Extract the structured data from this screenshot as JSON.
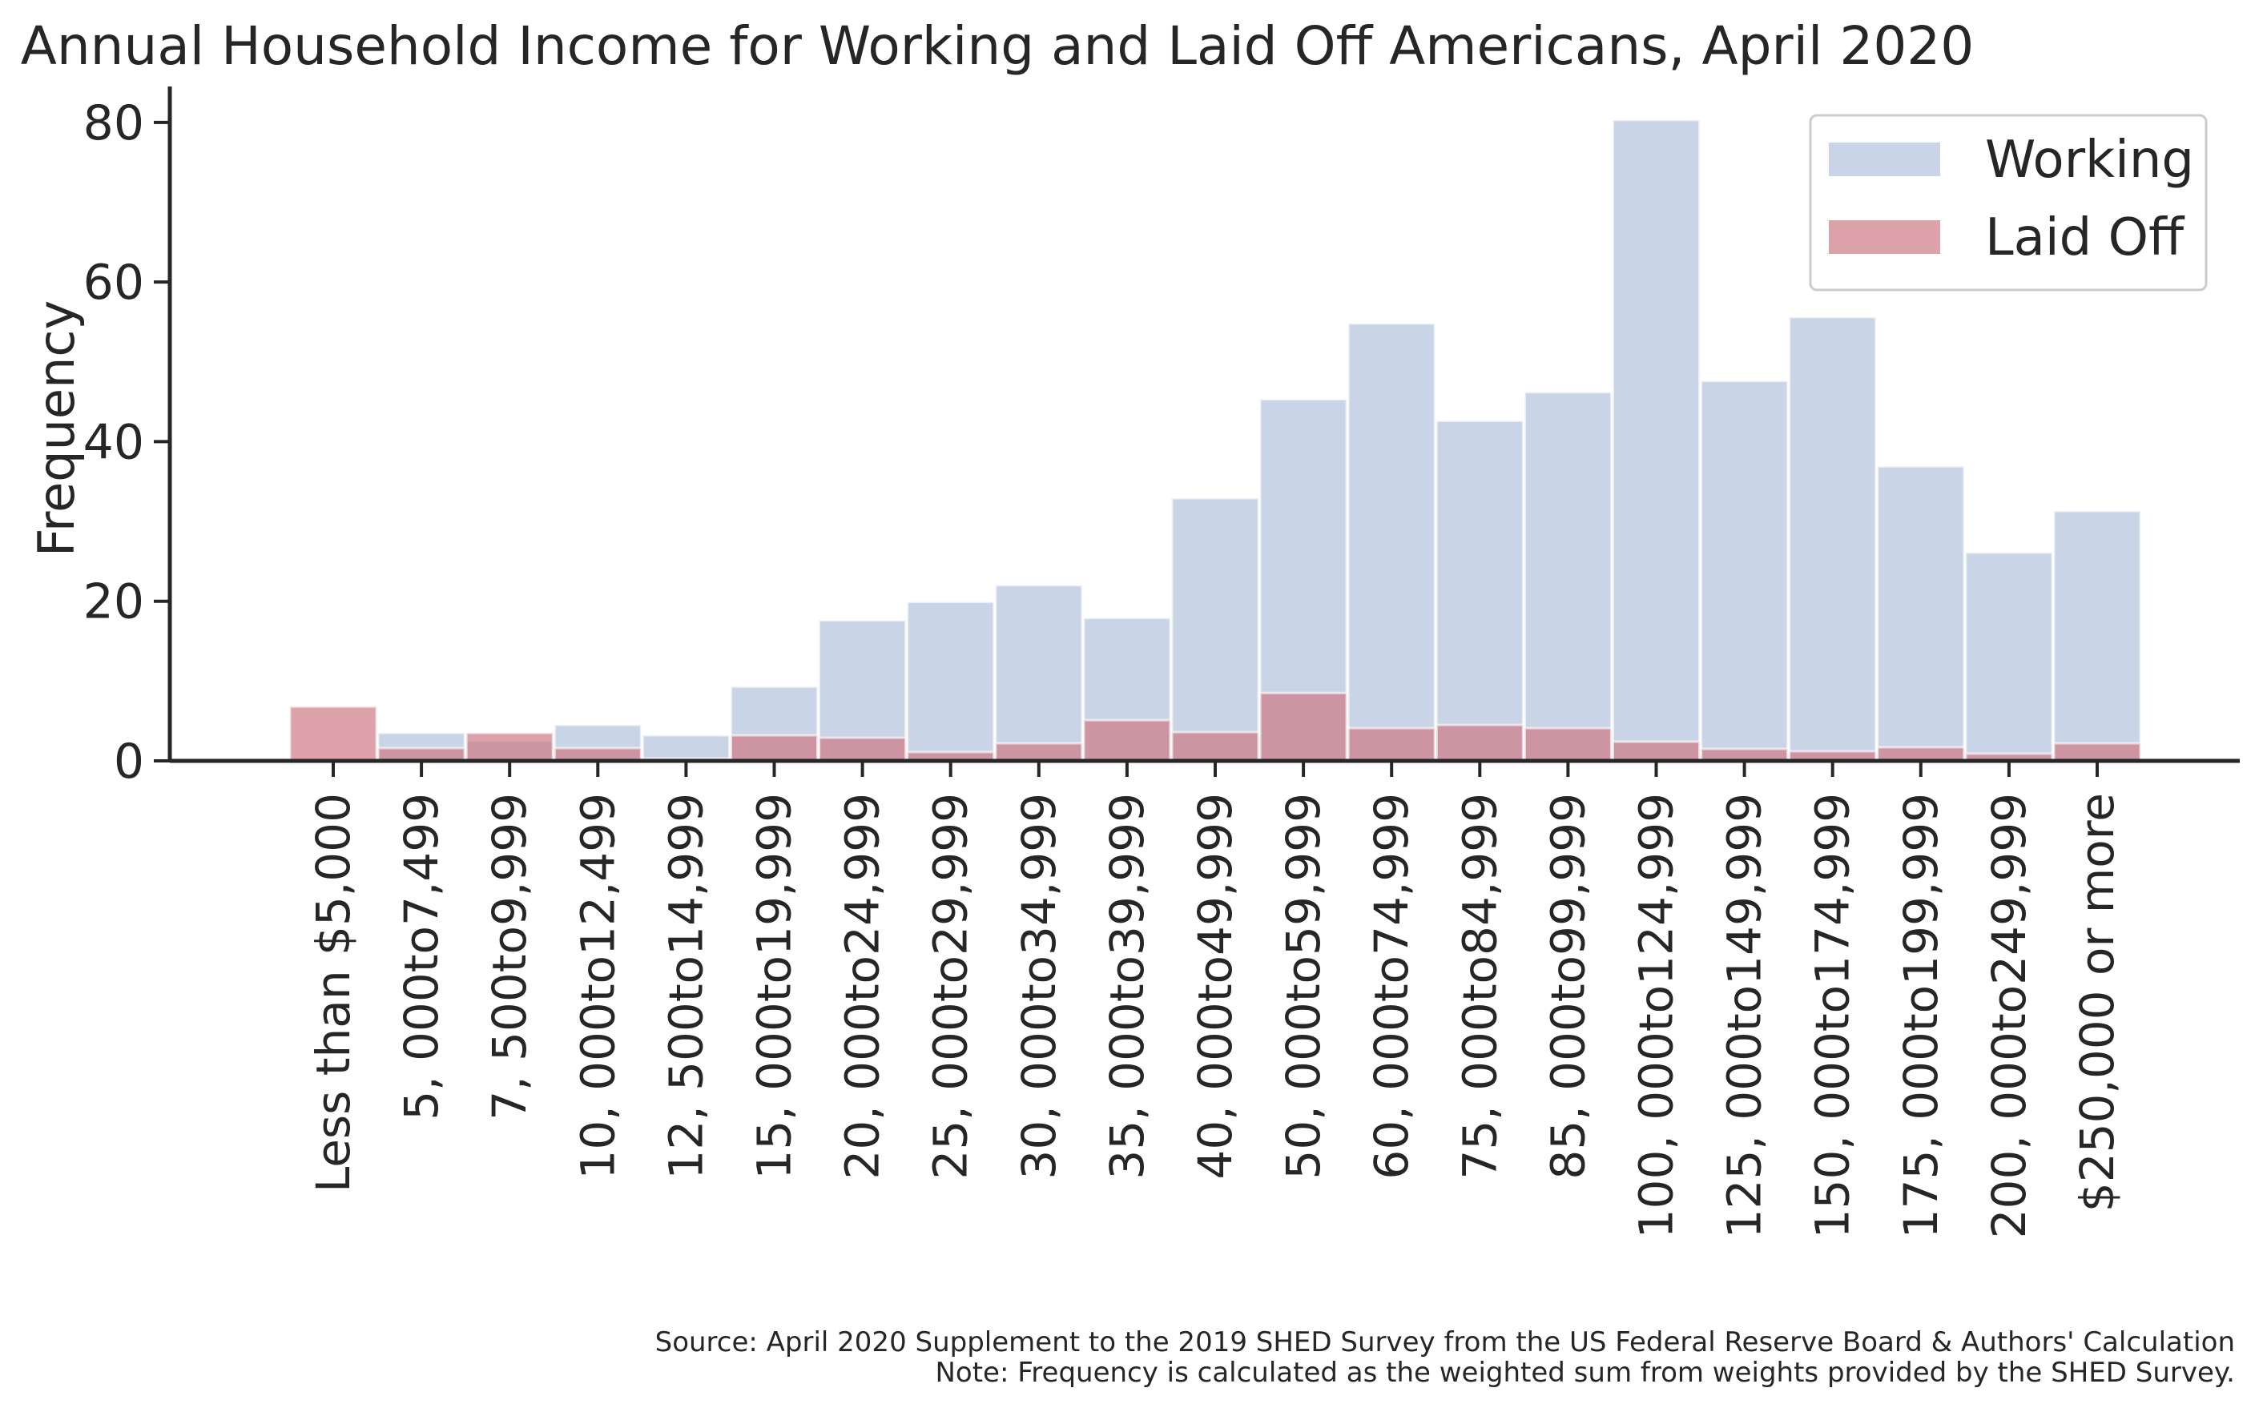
{
  "chart_data": {
    "type": "bar",
    "title": "Annual Household Income for Working and Laid Off Americans, April 2020",
    "ylabel": "Frequency",
    "xlabel": "",
    "ylim": [
      0,
      84.5
    ],
    "yticks": [
      0,
      20,
      40,
      60,
      80
    ],
    "categories": [
      "Less than $5,000",
      "5, 000to7,499",
      "7, 500to9,999",
      "10, 000to12,499",
      "12, 500to14,999",
      "15, 000to19,999",
      "20, 000to24,999",
      "25, 000to29,999",
      "30, 000to34,999",
      "35, 000to39,999",
      "40, 000to49,999",
      "50, 000to59,999",
      "60, 000to74,999",
      "75, 000to84,999",
      "85, 000to99,999",
      "100, 000to124,999",
      "125, 000to149,999",
      "150, 000to174,999",
      "175, 000to199,999",
      "200, 000to249,999",
      "$250,000 or more"
    ],
    "series": [
      {
        "name": "Working",
        "color": "#b7c5de",
        "values": [
          0,
          3.5,
          2.5,
          4.5,
          3.2,
          9.3,
          17.6,
          19.9,
          22.0,
          17.9,
          32.9,
          45.3,
          54.8,
          42.6,
          46.2,
          80.3,
          47.6,
          55.6,
          36.9,
          26.1,
          31.3
        ]
      },
      {
        "name": "Laid Off",
        "color": "#cf7b85",
        "values": [
          6.8,
          1.6,
          3.5,
          1.6,
          0.3,
          3.2,
          2.9,
          1.1,
          2.2,
          5.1,
          3.6,
          8.5,
          4.1,
          4.5,
          4.1,
          2.4,
          1.5,
          1.2,
          1.7,
          0.9,
          2.2
        ]
      }
    ],
    "legend_position": "top-right",
    "grid": false
  },
  "footnote": {
    "source": "Source: April 2020 Supplement to the 2019 SHED Survey from the US Federal Reserve Board & Authors' Calculation",
    "note": "Note: Frequency is calculated as the weighted sum from weights provided by the SHED Survey."
  }
}
